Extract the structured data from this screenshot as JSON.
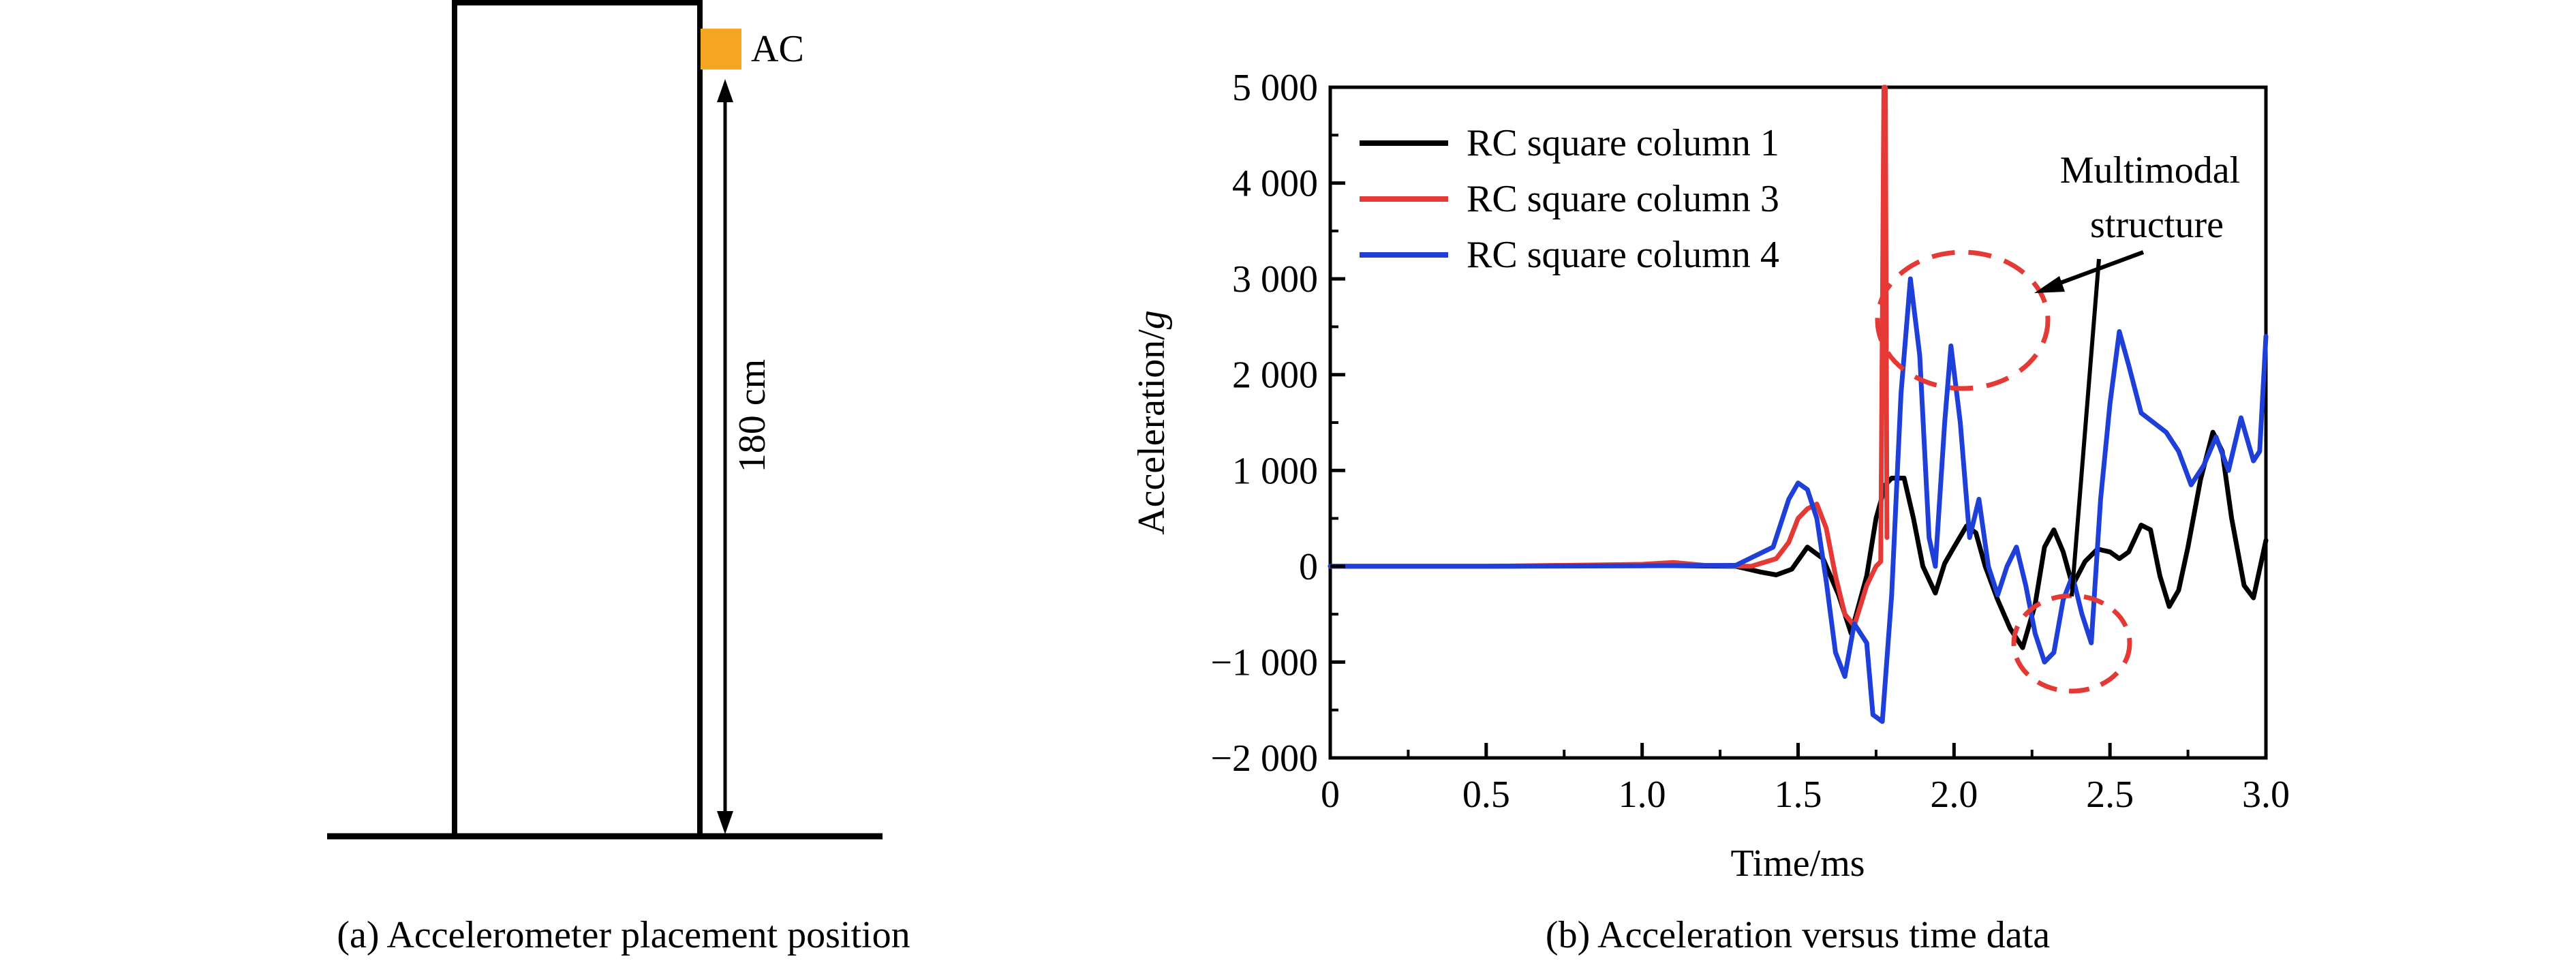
{
  "panel_a": {
    "caption": "(a) Accelerometer placement position",
    "sensor_label": "AC",
    "height_label": "180 cm",
    "sensor_color": "#F5A623"
  },
  "panel_b": {
    "caption": "(b) Acceleration versus time data",
    "annotation": {
      "line1": "Multimodal",
      "line2": "structure",
      "circle_color": "#E53935"
    }
  },
  "chart_data": {
    "type": "line",
    "title": "",
    "xlabel": "Time/ms",
    "ylabel_main": "Acceleration/",
    "ylabel_italic": "g",
    "xlim": [
      0,
      3.0
    ],
    "ylim": [
      -2000,
      5000
    ],
    "xticks": [
      "0",
      "0.5",
      "1.0",
      "1.5",
      "2.0",
      "2.5",
      "3.0"
    ],
    "xtick_values": [
      0,
      0.5,
      1.0,
      1.5,
      2.0,
      2.5,
      3.0
    ],
    "yticks": [
      "5 000",
      "4 000",
      "3 000",
      "2 000",
      "1 000",
      "0",
      "−1 000",
      "−2 000"
    ],
    "ytick_values": [
      5000,
      4000,
      3000,
      2000,
      1000,
      0,
      -1000,
      -2000
    ],
    "grid": false,
    "legend_position": "top-left",
    "series": [
      {
        "name": "RC square column 1",
        "color": "#000000",
        "points": [
          [
            0,
            0
          ],
          [
            0.5,
            0
          ],
          [
            1.0,
            10
          ],
          [
            1.3,
            0
          ],
          [
            1.38,
            -60
          ],
          [
            1.43,
            -90
          ],
          [
            1.48,
            -30
          ],
          [
            1.53,
            200
          ],
          [
            1.58,
            80
          ],
          [
            1.63,
            -300
          ],
          [
            1.67,
            -700
          ],
          [
            1.72,
            -100
          ],
          [
            1.75,
            500
          ],
          [
            1.78,
            850
          ],
          [
            1.8,
            920
          ],
          [
            1.84,
            920
          ],
          [
            1.87,
            500
          ],
          [
            1.9,
            0
          ],
          [
            1.94,
            -280
          ],
          [
            1.97,
            30
          ],
          [
            2.0,
            200
          ],
          [
            2.04,
            420
          ],
          [
            2.07,
            350
          ],
          [
            2.1,
            0
          ],
          [
            2.14,
            -350
          ],
          [
            2.18,
            -650
          ],
          [
            2.22,
            -850
          ],
          [
            2.26,
            -400
          ],
          [
            2.29,
            200
          ],
          [
            2.32,
            380
          ],
          [
            2.35,
            150
          ],
          [
            2.38,
            -200
          ],
          [
            2.42,
            50
          ],
          [
            2.46,
            180
          ],
          [
            2.5,
            150
          ],
          [
            2.53,
            80
          ],
          [
            2.56,
            150
          ],
          [
            2.6,
            430
          ],
          [
            2.63,
            380
          ],
          [
            2.66,
            -100
          ],
          [
            2.69,
            -420
          ],
          [
            2.72,
            -250
          ],
          [
            2.75,
            200
          ],
          [
            2.79,
            900
          ],
          [
            2.83,
            1400
          ],
          [
            2.86,
            1200
          ],
          [
            2.89,
            500
          ],
          [
            2.93,
            -200
          ],
          [
            2.96,
            -330
          ],
          [
            3.0,
            270
          ]
        ]
      },
      {
        "name": "RC square column 3",
        "color": "#E53935",
        "points": [
          [
            0,
            0
          ],
          [
            0.5,
            0
          ],
          [
            1.0,
            20
          ],
          [
            1.1,
            40
          ],
          [
            1.2,
            10
          ],
          [
            1.35,
            0
          ],
          [
            1.43,
            80
          ],
          [
            1.47,
            250
          ],
          [
            1.5,
            500
          ],
          [
            1.53,
            600
          ],
          [
            1.56,
            650
          ],
          [
            1.59,
            400
          ],
          [
            1.62,
            -100
          ],
          [
            1.65,
            -500
          ],
          [
            1.68,
            -620
          ],
          [
            1.72,
            -200
          ],
          [
            1.75,
            0
          ],
          [
            1.765,
            50
          ],
          [
            1.775,
            5000
          ],
          [
            1.78,
            5000
          ],
          [
            1.785,
            300
          ]
        ]
      },
      {
        "name": "RC square column 4",
        "color": "#1E3FD8",
        "points": [
          [
            0,
            0
          ],
          [
            0.5,
            0
          ],
          [
            1.0,
            5
          ],
          [
            1.3,
            10
          ],
          [
            1.42,
            200
          ],
          [
            1.47,
            700
          ],
          [
            1.5,
            870
          ],
          [
            1.53,
            800
          ],
          [
            1.56,
            500
          ],
          [
            1.59,
            -150
          ],
          [
            1.62,
            -900
          ],
          [
            1.65,
            -1150
          ],
          [
            1.68,
            -600
          ],
          [
            1.72,
            -800
          ],
          [
            1.74,
            -1550
          ],
          [
            1.77,
            -1620
          ],
          [
            1.8,
            -300
          ],
          [
            1.83,
            1800
          ],
          [
            1.86,
            3000
          ],
          [
            1.89,
            2200
          ],
          [
            1.92,
            300
          ],
          [
            1.94,
            0
          ],
          [
            1.97,
            1500
          ],
          [
            1.99,
            2300
          ],
          [
            2.02,
            1500
          ],
          [
            2.05,
            300
          ],
          [
            2.08,
            700
          ],
          [
            2.11,
            0
          ],
          [
            2.14,
            -300
          ],
          [
            2.17,
            0
          ],
          [
            2.2,
            200
          ],
          [
            2.23,
            -200
          ],
          [
            2.26,
            -700
          ],
          [
            2.29,
            -1000
          ],
          [
            2.32,
            -900
          ],
          [
            2.35,
            -350
          ],
          [
            2.38,
            -100
          ],
          [
            2.41,
            -500
          ],
          [
            2.44,
            -800
          ],
          [
            2.47,
            700
          ],
          [
            2.5,
            1700
          ],
          [
            2.53,
            2450
          ],
          [
            2.56,
            2100
          ],
          [
            2.6,
            1600
          ],
          [
            2.64,
            1500
          ],
          [
            2.68,
            1400
          ],
          [
            2.72,
            1200
          ],
          [
            2.76,
            850
          ],
          [
            2.8,
            1050
          ],
          [
            2.84,
            1350
          ],
          [
            2.88,
            1000
          ],
          [
            2.92,
            1550
          ],
          [
            2.96,
            1100
          ],
          [
            2.98,
            1200
          ],
          [
            3.0,
            2400
          ]
        ]
      }
    ]
  }
}
